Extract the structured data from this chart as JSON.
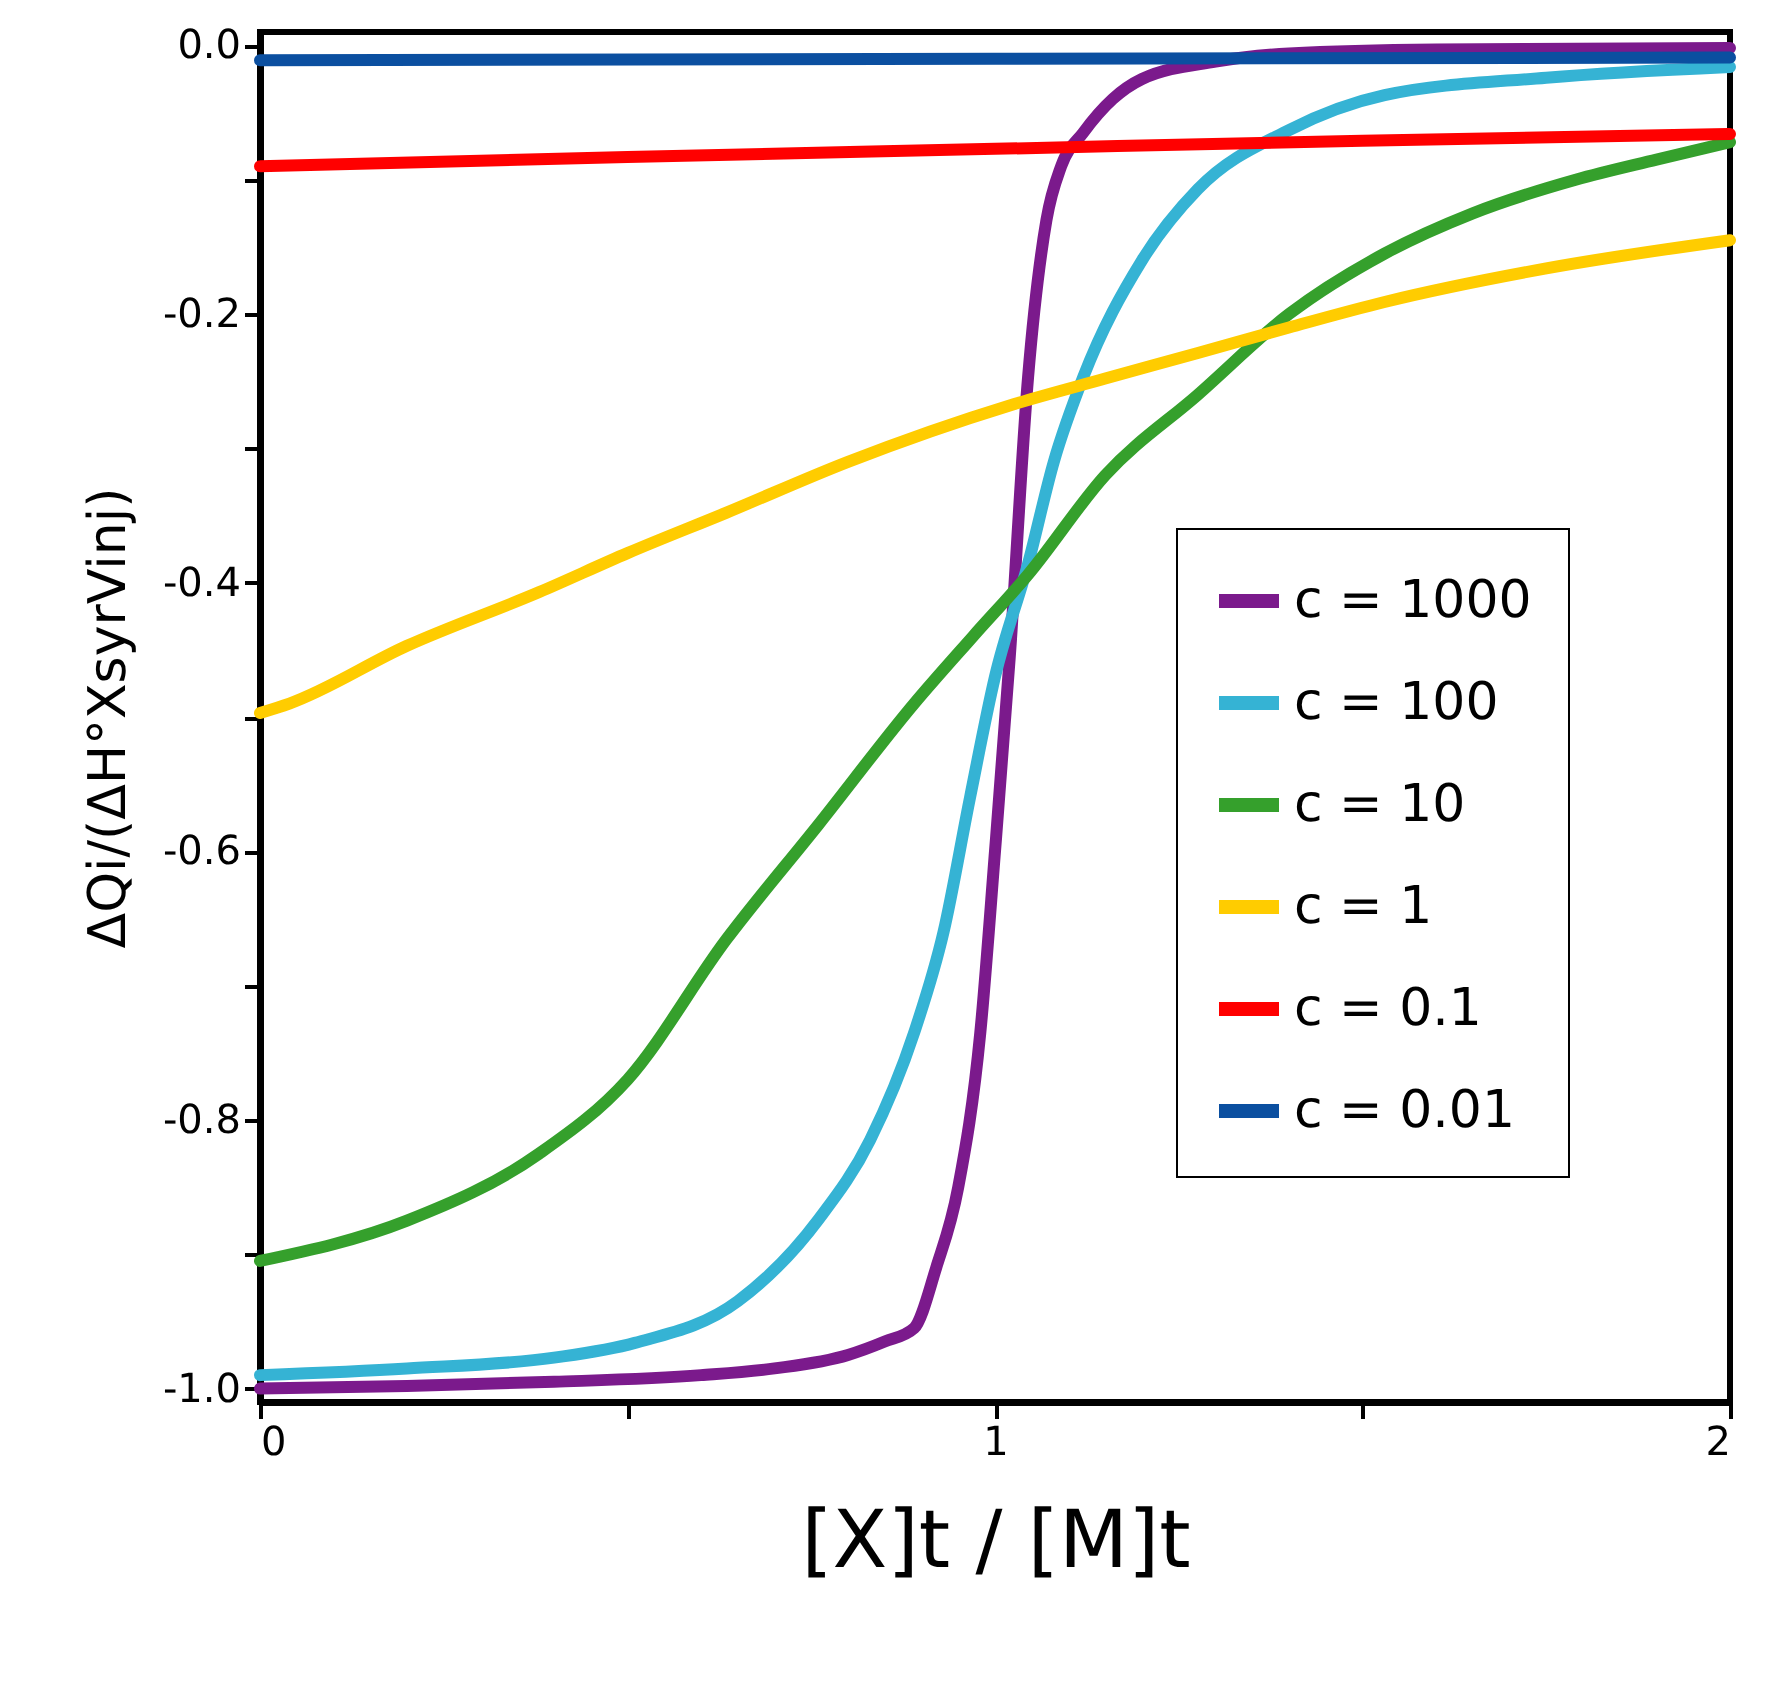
{
  "chart_data": {
    "type": "line",
    "xlabel": "[X]t / [M]t",
    "ylabel": "ΔQi/(ΔH°XsyrVinj)",
    "xlim": [
      0,
      2
    ],
    "ylim": [
      -1.01,
      0.01
    ],
    "xticks": [
      0,
      {
        "value": 0.5,
        "label": null
      },
      1,
      {
        "value": 1.5,
        "label": null
      },
      2
    ],
    "yticks": [
      {
        "value": -1,
        "label": "-1.0"
      },
      {
        "value": -0.9,
        "label": null
      },
      {
        "value": -0.8,
        "label": "-0.8"
      },
      {
        "value": -0.7,
        "label": null
      },
      {
        "value": -0.6,
        "label": "-0.6"
      },
      {
        "value": -0.5,
        "label": null
      },
      {
        "value": -0.4,
        "label": "-0.4"
      },
      {
        "value": -0.3,
        "label": null
      },
      {
        "value": -0.2,
        "label": "-0.2"
      },
      {
        "value": -0.1,
        "label": null
      },
      {
        "value": 0,
        "label": "0.0"
      }
    ],
    "grid": false,
    "legend": "bottom right",
    "marker": "none",
    "line_style": "solid",
    "series": [
      {
        "name": "c = 1000",
        "color": "#7b1a8c",
        "x": [
          0,
          0.2,
          0.4,
          0.6,
          0.7,
          0.8,
          0.85,
          0.89,
          0.92,
          0.95,
          0.98,
          1.0,
          1.02,
          1.045,
          1.07,
          1.09,
          1.12,
          1.16,
          1.2,
          1.3,
          1.4,
          1.6,
          2.0
        ],
        "values": [
          -1.0,
          -0.998,
          -0.995,
          -0.99,
          -0.985,
          -0.975,
          -0.965,
          -0.955,
          -0.91,
          -0.85,
          -0.735,
          -0.6,
          -0.456,
          -0.247,
          -0.13,
          -0.09,
          -0.065,
          -0.04,
          -0.025,
          -0.012,
          -0.006,
          -0.003,
          -0.002
        ]
      },
      {
        "name": "c = 100",
        "color": "#35b3d4",
        "x": [
          0,
          0.2,
          0.4,
          0.51,
          0.65,
          0.76,
          0.83,
          0.89,
          0.93,
          0.966,
          1.0,
          1.045,
          1.08,
          1.12,
          1.2,
          1.276,
          1.4,
          1.53,
          1.75,
          2.0
        ],
        "values": [
          -0.99,
          -0.985,
          -0.977,
          -0.966,
          -0.935,
          -0.874,
          -0.815,
          -0.735,
          -0.66,
          -0.56,
          -0.47,
          -0.386,
          -0.31,
          -0.247,
          -0.16,
          -0.107,
          -0.063,
          -0.037,
          -0.024,
          -0.016
        ]
      },
      {
        "name": "c = 10",
        "color": "#35a02c",
        "x": [
          0,
          0.2,
          0.38,
          0.5,
          0.634,
          0.76,
          0.89,
          0.97,
          1.045,
          1.15,
          1.276,
          1.4,
          1.53,
          1.65,
          1.79,
          1.9,
          2.0
        ],
        "values": [
          -0.905,
          -0.875,
          -0.825,
          -0.77,
          -0.666,
          -0.58,
          -0.49,
          -0.44,
          -0.394,
          -0.32,
          -0.26,
          -0.2,
          -0.155,
          -0.125,
          -0.1,
          -0.085,
          -0.072
        ]
      },
      {
        "name": "c = 1",
        "color": "#ffcc00",
        "x": [
          0,
          0.04,
          0.2,
          0.38,
          0.5,
          0.634,
          0.8,
          1.02,
          1.15,
          1.276,
          1.4,
          1.53,
          1.75,
          2.0
        ],
        "values": [
          -0.497,
          -0.49,
          -0.447,
          -0.407,
          -0.378,
          -0.348,
          -0.31,
          -0.268,
          -0.248,
          -0.229,
          -0.21,
          -0.191,
          -0.166,
          -0.145
        ]
      },
      {
        "name": "c = 0.1",
        "color": "#ff0000",
        "x": [
          0,
          0.5,
          1,
          1.5,
          2
        ],
        "values": [
          -0.09,
          -0.083,
          -0.077,
          -0.071,
          -0.066
        ]
      },
      {
        "name": "c = 0.01",
        "color": "#0b4fa0",
        "x": [
          0,
          1,
          2
        ],
        "values": [
          -0.011,
          -0.01,
          -0.009
        ]
      }
    ]
  }
}
